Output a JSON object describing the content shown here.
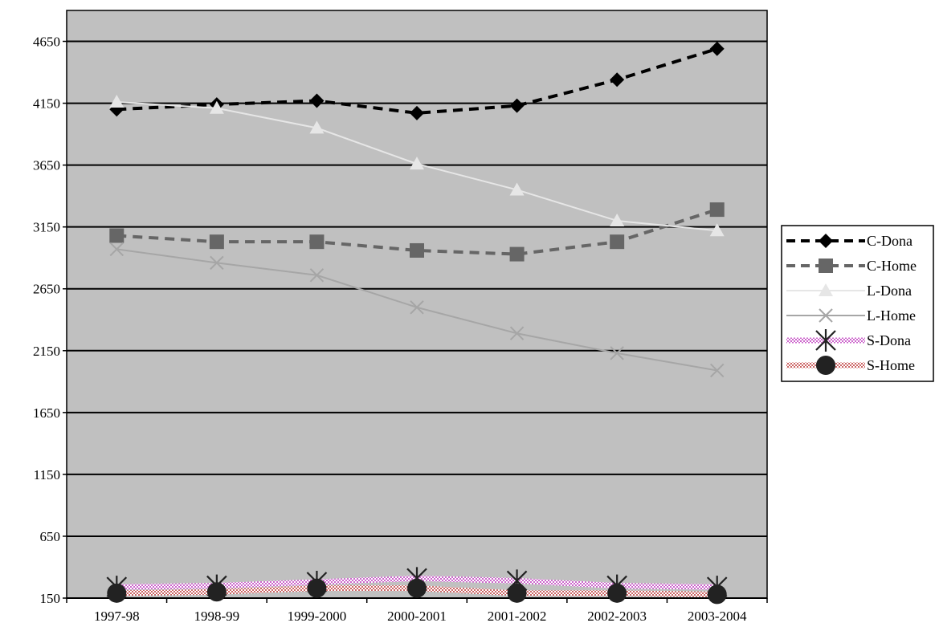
{
  "chart_data": {
    "type": "line",
    "title": "",
    "xlabel": "",
    "ylabel": "",
    "categories": [
      "1997-98",
      "1998-99",
      "1999-2000",
      "2000-2001",
      "2001-2002",
      "2002-2003",
      "2003-2004"
    ],
    "ylim": [
      150,
      4900
    ],
    "yticks": [
      150,
      650,
      1150,
      1650,
      2150,
      2650,
      3150,
      3650,
      4150,
      4650
    ],
    "grid": true,
    "legend": "right",
    "plot_background": "#c0c0c0",
    "series": [
      {
        "name": "C-Dona",
        "values": [
          4100,
          4140,
          4170,
          4070,
          4130,
          4340,
          4590
        ],
        "color": "#000000",
        "line": "dashed-thick",
        "marker": "diamond"
      },
      {
        "name": "C-Home",
        "values": [
          3080,
          3030,
          3030,
          2960,
          2930,
          3030,
          3290
        ],
        "color": "#666666",
        "line": "dashed-thick",
        "marker": "square"
      },
      {
        "name": "L-Dona",
        "values": [
          4160,
          4110,
          3950,
          3660,
          3450,
          3200,
          3120
        ],
        "color": "#e6e6e6",
        "line": "solid",
        "marker": "triangle"
      },
      {
        "name": "L-Home",
        "values": [
          2970,
          2860,
          2760,
          2500,
          2290,
          2130,
          1990
        ],
        "color": "#a6a6a6",
        "line": "solid",
        "marker": "x"
      },
      {
        "name": "S-Dona",
        "values": [
          240,
          250,
          280,
          310,
          290,
          250,
          240
        ],
        "color": "#cc66cc",
        "line": "pattern",
        "marker": "asterisk"
      },
      {
        "name": "S-Home",
        "values": [
          190,
          200,
          230,
          230,
          190,
          190,
          180
        ],
        "color": "#cc6666",
        "line": "pattern",
        "marker": "circle"
      }
    ]
  }
}
